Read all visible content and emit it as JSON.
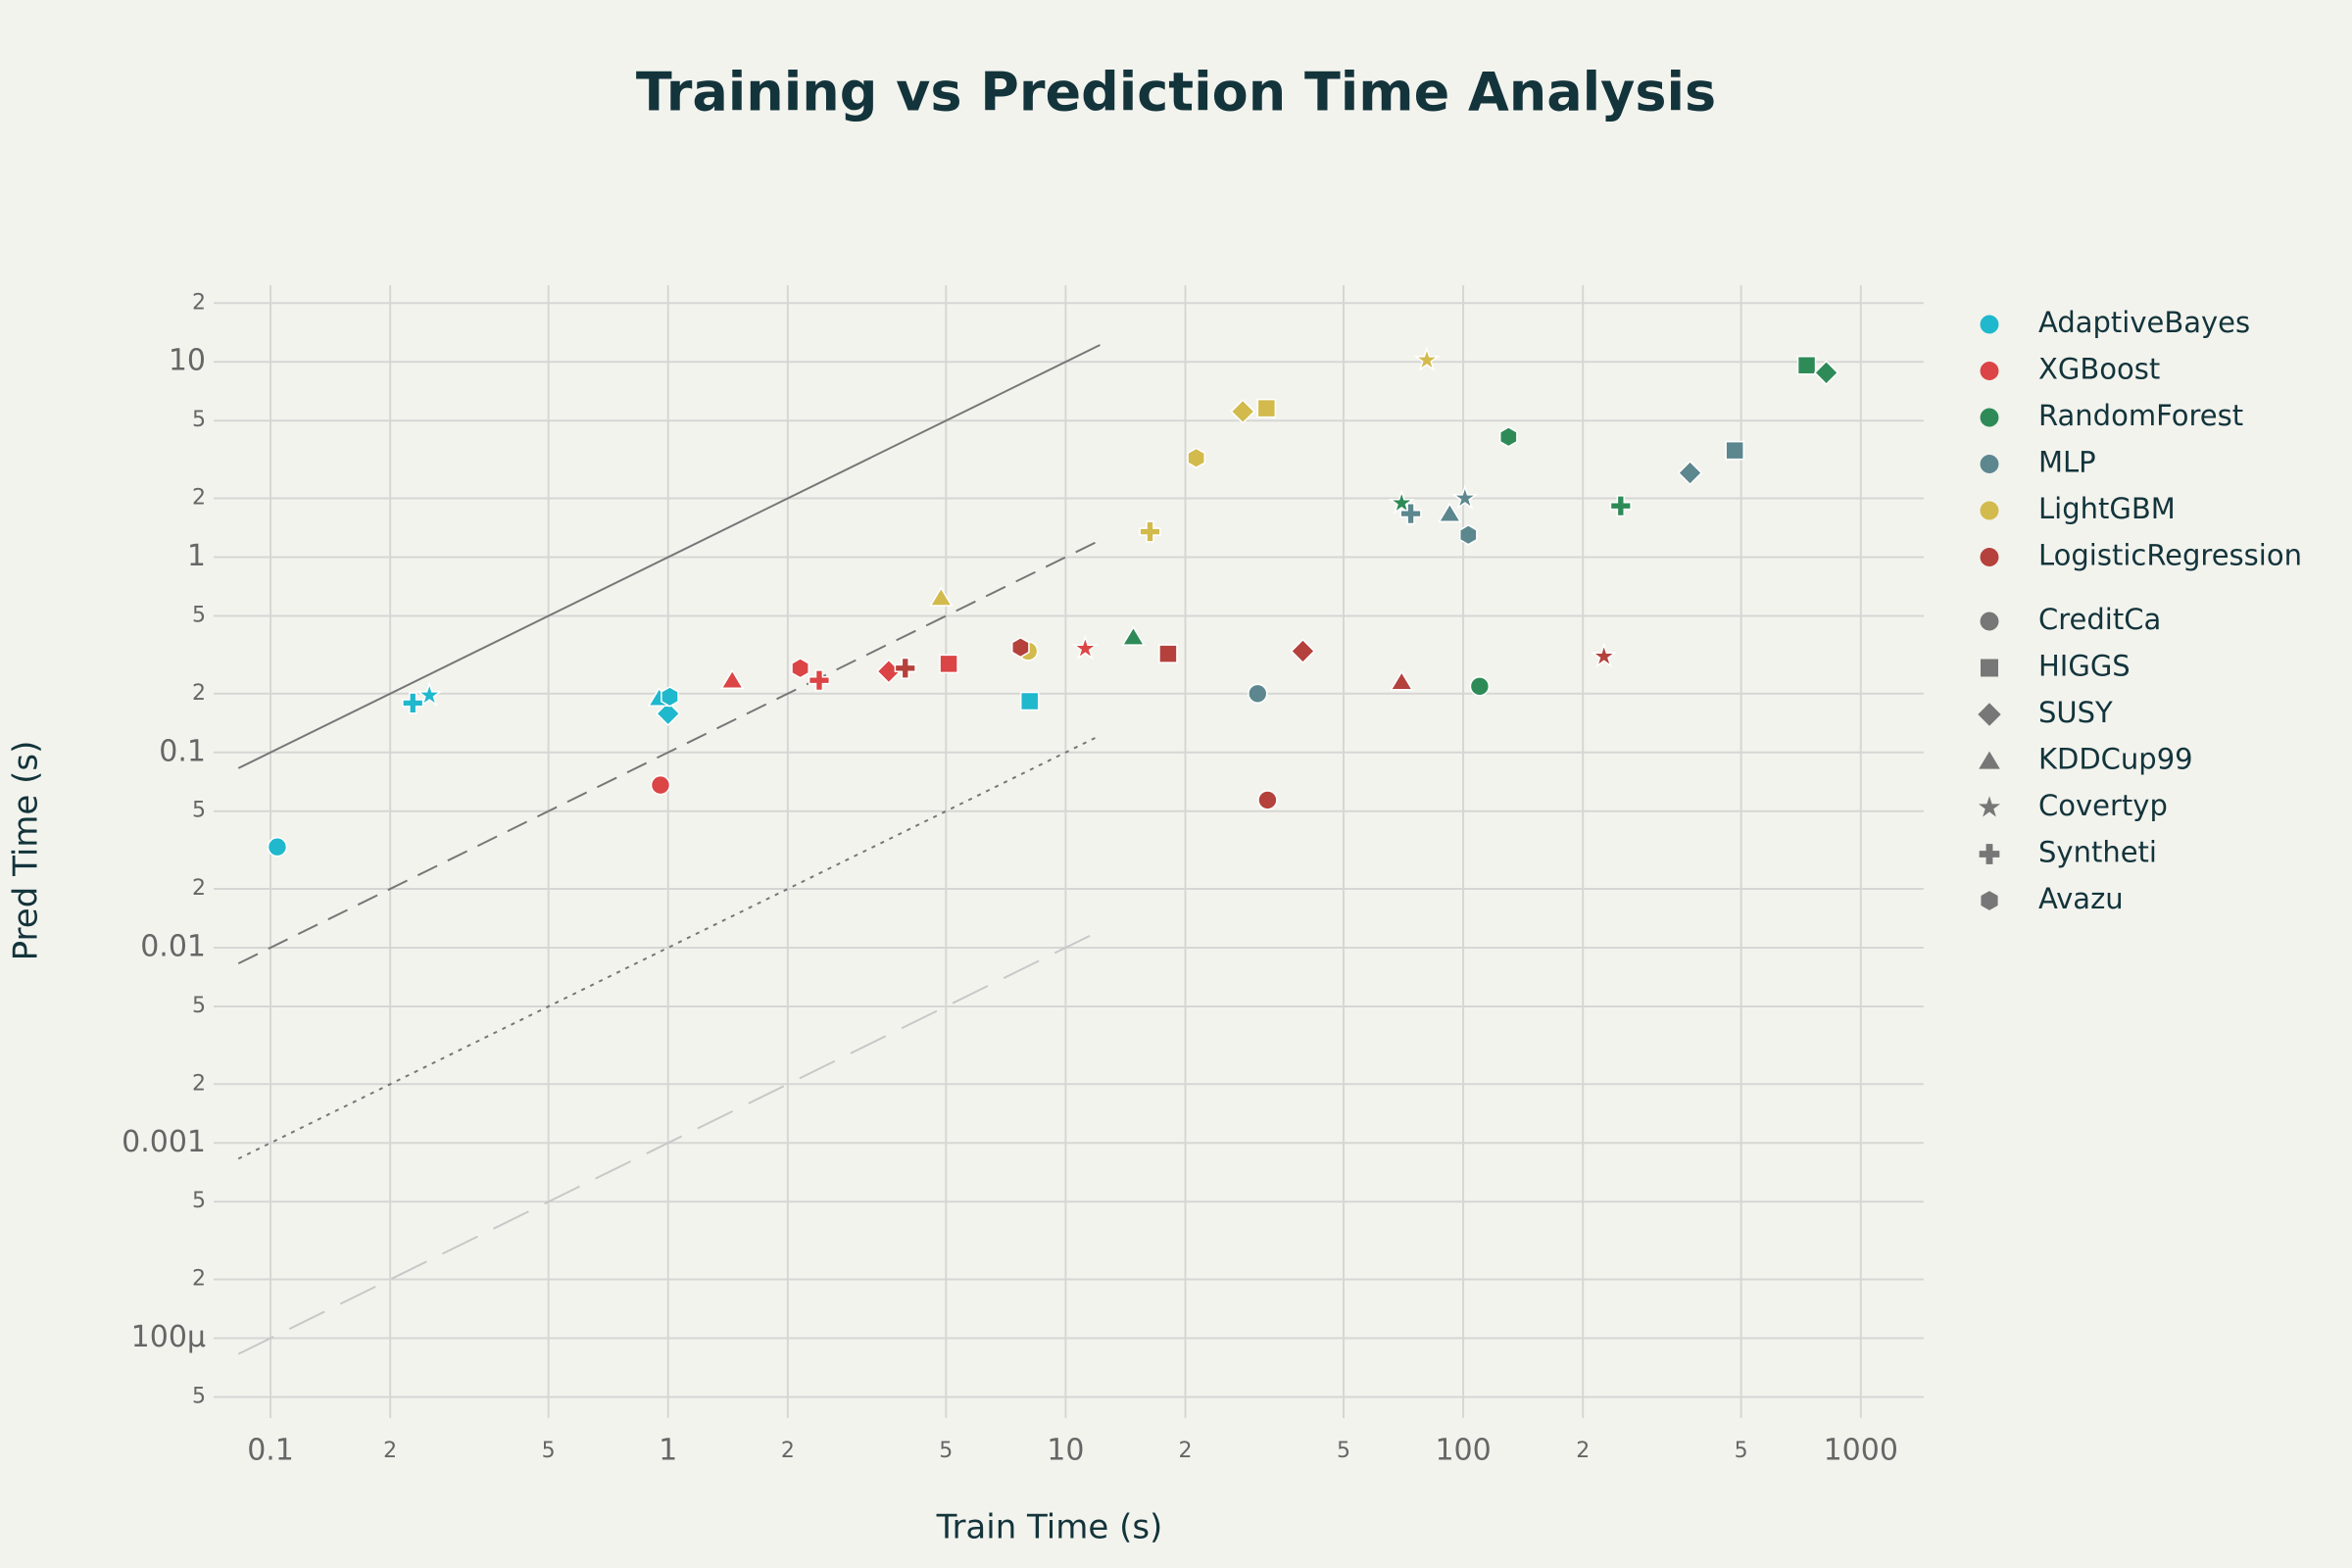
{
  "chart_data": {
    "type": "scatter",
    "title": "Training vs Prediction Time Analysis",
    "x_label": "Train Time (s)",
    "y_label": "Pred Time (s)",
    "xscale": "log",
    "yscale": "log",
    "grid": true,
    "legend": "right",
    "xlim": [
      0.077,
      1440
    ],
    "ylim": [
      3.9e-05,
      24.7
    ],
    "xticks": [
      0.1,
      {
        "value": 0.2,
        "label": "2"
      },
      {
        "value": 0.5,
        "label": "5"
      },
      1,
      2,
      5,
      10,
      {
        "value": 20,
        "label": "2"
      },
      {
        "value": 50,
        "label": "5"
      },
      100,
      {
        "value": 200,
        "label": "2"
      },
      {
        "value": 500,
        "label": "5"
      },
      1000
    ],
    "yticks": [
      {
        "value": 20,
        "label": "2"
      },
      10,
      5,
      2,
      1,
      {
        "value": 0.5,
        "label": "5"
      },
      {
        "value": 0.2,
        "label": "2"
      },
      0.1,
      {
        "value": 0.05,
        "label": "5"
      },
      {
        "value": 0.02,
        "label": "2"
      },
      0.01,
      {
        "value": 0.005,
        "label": "5"
      },
      {
        "value": 0.002,
        "label": "2"
      },
      0.001,
      {
        "value": 0.0005,
        "label": "5"
      },
      {
        "value": 0.0002,
        "label": "2"
      },
      {
        "value": 0.0001,
        "label": "100µ"
      },
      {
        "value": 5e-05,
        "label": "5"
      }
    ],
    "reference_lines": [
      {
        "ratio": 1,
        "x": [
          0.083,
          12.2
        ],
        "dash": "solid",
        "color": "#777777"
      },
      {
        "ratio": 0.1,
        "x": [
          0.083,
          12.2
        ],
        "dash": "dash",
        "color": "#777777"
      },
      {
        "ratio": 0.01,
        "x": [
          0.083,
          12.2
        ],
        "dash": "dot",
        "color": "#777777"
      },
      {
        "ratio": 0.001,
        "x": [
          0.083,
          12.2
        ],
        "dash": "longdash",
        "color": "#c8c8c8"
      }
    ],
    "symbols": [
      {
        "name": "CreditCa",
        "symbol": "circle"
      },
      {
        "name": "HIGGS",
        "symbol": "square"
      },
      {
        "name": "SUSY",
        "symbol": "diamond"
      },
      {
        "name": "KDDCup99",
        "symbol": "triangle"
      },
      {
        "name": "Covertyp",
        "symbol": "star"
      },
      {
        "name": "Syntheti",
        "symbol": "cross"
      },
      {
        "name": "Avazu",
        "symbol": "hexagon"
      }
    ],
    "symbol_color": "#777777",
    "series": [
      {
        "name": "AdaptiveBayes",
        "color": "#1FB8CD",
        "x": [
          0.104,
          8.12,
          1.0,
          0.95,
          0.251,
          0.228,
          1.01
        ],
        "y": [
          0.0328,
          0.183,
          0.158,
          0.19,
          0.196,
          0.179,
          0.193
        ]
      },
      {
        "name": "XGBoost",
        "color": "#DB4545",
        "x": [
          0.957,
          5.08,
          3.59,
          1.45,
          11.2,
          2.4,
          2.15
        ],
        "y": [
          0.068,
          0.284,
          0.26,
          0.234,
          0.34,
          0.234,
          0.27
        ]
      },
      {
        "name": "RandomForest",
        "color": "#2E8B57",
        "x": [
          110,
          731,
          819,
          14.8,
          70,
          249,
          130
        ],
        "y": [
          0.218,
          9.6,
          8.8,
          0.39,
          1.89,
          1.83,
          4.13
        ]
      },
      {
        "name": "MLP",
        "color": "#5D878F",
        "x": [
          30.4,
          482,
          372,
          92.5,
          101,
          73.8,
          103
        ],
        "y": [
          0.2,
          3.52,
          2.7,
          1.67,
          2.0,
          1.67,
          1.3
        ]
      },
      {
        "name": "LightGBM",
        "color": "#D2BA4C",
        "x": [
          8.05,
          32,
          27.9,
          4.86,
          81,
          16.3,
          21.3
        ],
        "y": [
          0.33,
          5.78,
          5.57,
          0.62,
          10.2,
          1.35,
          3.22
        ]
      },
      {
        "name": "LogisticRegression",
        "color": "#B4413C",
        "x": [
          32.2,
          18.1,
          39.5,
          70,
          226,
          3.95,
          7.7
        ],
        "y": [
          0.057,
          0.32,
          0.33,
          0.23,
          0.31,
          0.27,
          0.345
        ]
      }
    ]
  }
}
